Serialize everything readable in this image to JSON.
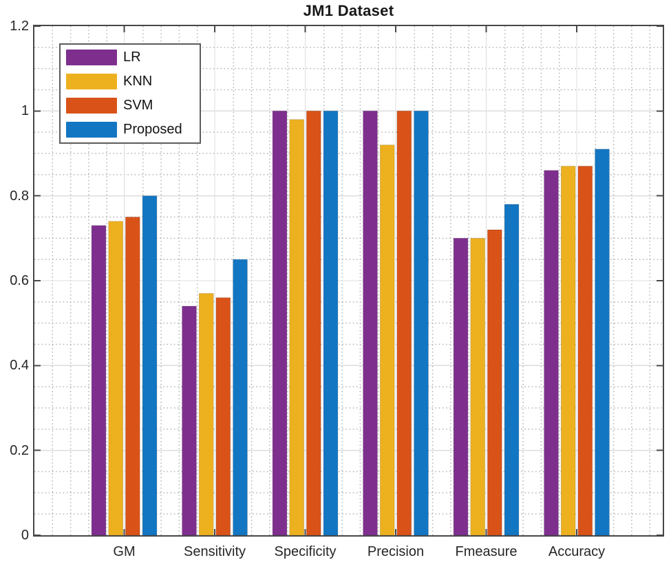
{
  "chart_data": {
    "type": "bar",
    "title": "JM1 Dataset",
    "categories": [
      "GM",
      "Sensitivity",
      "Specificity",
      "Precision",
      "Fmeasure",
      "Accuracy"
    ],
    "series": [
      {
        "name": "LR",
        "color": "#7E2F8E",
        "values": [
          0.73,
          0.54,
          1.0,
          1.0,
          0.7,
          0.86
        ]
      },
      {
        "name": "KNN",
        "color": "#EDB120",
        "values": [
          0.74,
          0.57,
          0.98,
          0.92,
          0.7,
          0.87
        ]
      },
      {
        "name": "SVM",
        "color": "#D95319",
        "values": [
          0.75,
          0.56,
          1.0,
          1.0,
          0.72,
          0.87
        ]
      },
      {
        "name": "Proposed",
        "color": "#1376C2",
        "values": [
          0.8,
          0.65,
          1.0,
          1.0,
          0.78,
          0.91
        ]
      }
    ],
    "xlabel": "",
    "ylabel": "",
    "ylim": [
      0,
      1.2
    ],
    "yticks": [
      "0",
      "0.2",
      "0.4",
      "0.6",
      "0.8",
      "1",
      "1.2"
    ],
    "grid": {
      "major": true,
      "minor_dotted": true
    },
    "legend_position": "top-left",
    "legend_entries": [
      "LR",
      "KNN",
      "SVM",
      "Proposed"
    ]
  }
}
